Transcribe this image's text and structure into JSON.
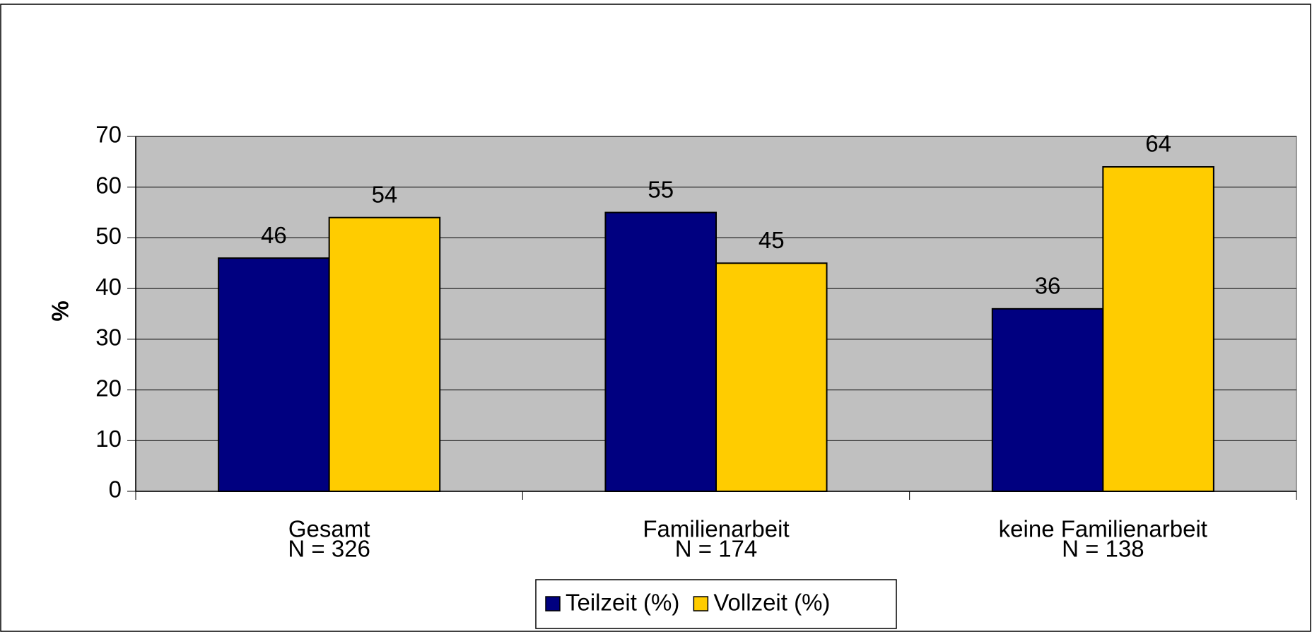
{
  "chart_data": {
    "type": "bar",
    "categories": [
      "Gesamt",
      "Familienarbeit",
      "keine Familienarbeit"
    ],
    "sample_sizes": [
      "N = 326",
      "N = 174",
      "N = 138"
    ],
    "series": [
      {
        "name": "Teilzeit (%)",
        "color": "#000080",
        "values": [
          46,
          55,
          36
        ]
      },
      {
        "name": "Vollzeit (%)",
        "color": "#ffcc00",
        "values": [
          54,
          45,
          64
        ]
      }
    ],
    "y_label": "%",
    "ylim": [
      0,
      70
    ],
    "yticks": [
      0,
      10,
      20,
      30,
      40,
      50,
      60,
      70
    ],
    "grid": true,
    "legend": "bottom"
  }
}
